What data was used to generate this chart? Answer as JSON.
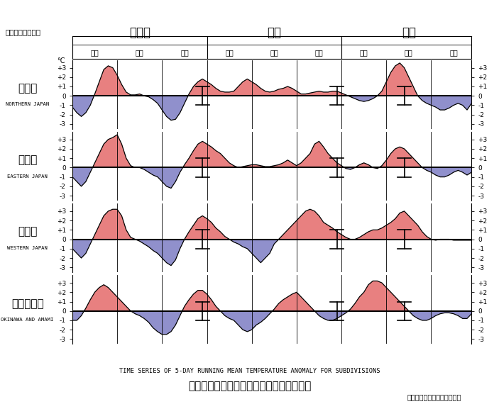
{
  "title_jp": "地域平均気温平年差の５日移動平均時系列",
  "title_en": "TIME SERIES OF 5-DAY RUNNING MEAN TEMPERATURE ANOMALY FOR SUBDIVISIONS",
  "update_date": "更新日：２０２４年３月１日",
  "year_label": "２０２３／２４年",
  "month_labels": [
    "１２月",
    "１月",
    "２月"
  ],
  "dekad_labels": [
    "上旬",
    "中旬",
    "下旬",
    "上旬",
    "中旬",
    "下旬",
    "上旬",
    "中旬",
    "下旬"
  ],
  "regions": [
    "北日本",
    "東日本",
    "西日本",
    "沖縄・奄美"
  ],
  "regions_en": [
    "NORTHERN JAPAN",
    "EASTERN JAPAN",
    "WESTERN JAPAN",
    "OKINAWA AND AMAMI"
  ],
  "ylim": [
    -3.5,
    3.8
  ],
  "yticks": [
    -3,
    -2,
    -1,
    0,
    1,
    2,
    3
  ],
  "ytick_labels": [
    "-3",
    "-2",
    "-1",
    "0",
    "+1",
    "+2",
    "+3"
  ],
  "color_fill_pos": "#E88080",
  "color_fill_neg": "#9090CC",
  "color_line": "#000000",
  "n_points": 90,
  "data": {
    "北日本": [
      -1.2,
      -1.8,
      -2.2,
      -1.8,
      -1.0,
      0.2,
      1.5,
      2.8,
      3.2,
      3.0,
      2.2,
      1.2,
      0.4,
      0.1,
      0.1,
      0.2,
      0.0,
      -0.1,
      -0.4,
      -0.8,
      -1.5,
      -2.2,
      -2.6,
      -2.5,
      -1.8,
      -0.8,
      0.2,
      1.0,
      1.5,
      1.8,
      1.5,
      1.2,
      0.8,
      0.5,
      0.4,
      0.4,
      0.5,
      1.0,
      1.5,
      1.8,
      1.5,
      1.2,
      0.8,
      0.5,
      0.4,
      0.5,
      0.7,
      0.8,
      1.0,
      0.8,
      0.5,
      0.2,
      0.2,
      0.3,
      0.4,
      0.5,
      0.4,
      0.4,
      0.5,
      0.5,
      0.3,
      0.1,
      -0.1,
      -0.3,
      -0.5,
      -0.6,
      -0.5,
      -0.3,
      0.0,
      0.5,
      1.5,
      2.5,
      3.2,
      3.5,
      3.0,
      2.0,
      1.0,
      0.0,
      -0.5,
      -0.8,
      -1.0,
      -1.2,
      -1.5,
      -1.5,
      -1.3,
      -1.0,
      -0.8,
      -1.0,
      -1.5,
      -0.8
    ],
    "東日本": [
      -1.0,
      -1.5,
      -2.0,
      -1.5,
      -0.5,
      0.5,
      1.5,
      2.5,
      3.0,
      3.2,
      3.5,
      2.5,
      1.0,
      0.2,
      0.0,
      0.0,
      -0.2,
      -0.5,
      -0.8,
      -1.0,
      -1.5,
      -2.0,
      -2.2,
      -1.5,
      -0.5,
      0.3,
      1.0,
      1.8,
      2.5,
      2.8,
      2.5,
      2.2,
      1.8,
      1.5,
      1.0,
      0.5,
      0.2,
      0.0,
      0.1,
      0.2,
      0.3,
      0.3,
      0.2,
      0.1,
      0.1,
      0.2,
      0.3,
      0.5,
      0.8,
      0.5,
      0.2,
      0.5,
      1.0,
      1.5,
      2.5,
      2.8,
      2.2,
      1.5,
      1.0,
      0.5,
      0.2,
      -0.1,
      -0.2,
      0.0,
      0.3,
      0.5,
      0.3,
      0.0,
      -0.1,
      0.2,
      0.8,
      1.5,
      2.0,
      2.2,
      2.0,
      1.5,
      1.0,
      0.5,
      0.0,
      -0.3,
      -0.5,
      -0.8,
      -1.0,
      -1.0,
      -0.8,
      -0.5,
      -0.3,
      -0.5,
      -0.8,
      -0.5
    ],
    "西日本": [
      -1.0,
      -1.5,
      -2.0,
      -1.5,
      -0.5,
      0.5,
      1.5,
      2.5,
      3.0,
      3.2,
      3.2,
      2.5,
      1.0,
      0.2,
      0.0,
      -0.2,
      -0.5,
      -0.8,
      -1.2,
      -1.5,
      -2.0,
      -2.5,
      -2.8,
      -2.2,
      -1.0,
      0.0,
      0.8,
      1.5,
      2.2,
      2.5,
      2.2,
      1.8,
      1.2,
      0.8,
      0.3,
      0.0,
      -0.3,
      -0.5,
      -0.8,
      -1.0,
      -1.5,
      -2.0,
      -2.5,
      -2.0,
      -1.5,
      -0.5,
      0.0,
      0.5,
      1.0,
      1.5,
      2.0,
      2.5,
      3.0,
      3.2,
      3.0,
      2.5,
      1.8,
      1.5,
      1.2,
      0.8,
      0.5,
      0.2,
      0.0,
      0.0,
      0.2,
      0.5,
      0.8,
      1.0,
      1.0,
      1.2,
      1.5,
      1.8,
      2.2,
      2.8,
      3.0,
      2.5,
      2.0,
      1.5,
      0.8,
      0.3,
      0.0,
      -0.1,
      0.0,
      0.0,
      0.0,
      -0.1,
      -0.1,
      -0.1,
      -0.1,
      -0.1
    ],
    "沖縄・奄美": [
      -1.0,
      -1.0,
      -0.5,
      0.3,
      1.2,
      2.0,
      2.5,
      2.8,
      2.5,
      2.0,
      1.5,
      1.0,
      0.5,
      0.0,
      -0.3,
      -0.5,
      -0.8,
      -1.2,
      -1.8,
      -2.2,
      -2.5,
      -2.5,
      -2.2,
      -1.5,
      -0.5,
      0.5,
      1.2,
      1.8,
      2.2,
      2.2,
      1.8,
      1.2,
      0.5,
      0.0,
      -0.5,
      -0.8,
      -1.0,
      -1.5,
      -2.0,
      -2.2,
      -2.0,
      -1.5,
      -1.2,
      -0.8,
      -0.3,
      0.2,
      0.8,
      1.2,
      1.5,
      1.8,
      2.0,
      1.5,
      1.0,
      0.5,
      0.0,
      -0.5,
      -0.8,
      -1.0,
      -1.0,
      -0.8,
      -0.5,
      -0.2,
      0.2,
      0.8,
      1.5,
      2.0,
      2.8,
      3.2,
      3.2,
      3.0,
      2.5,
      2.0,
      1.5,
      1.0,
      0.5,
      0.0,
      -0.5,
      -0.8,
      -1.0,
      -1.0,
      -0.8,
      -0.5,
      -0.3,
      -0.2,
      -0.2,
      -0.3,
      -0.5,
      -0.8,
      -0.8,
      -0.3
    ]
  },
  "error_bar_positions": [
    29,
    59,
    74
  ],
  "error_bar_half_height": 1.0,
  "dekad_positions": [
    0,
    10,
    20,
    30,
    40,
    50,
    60,
    70,
    80,
    89
  ],
  "background_color": "#FFFFFF"
}
